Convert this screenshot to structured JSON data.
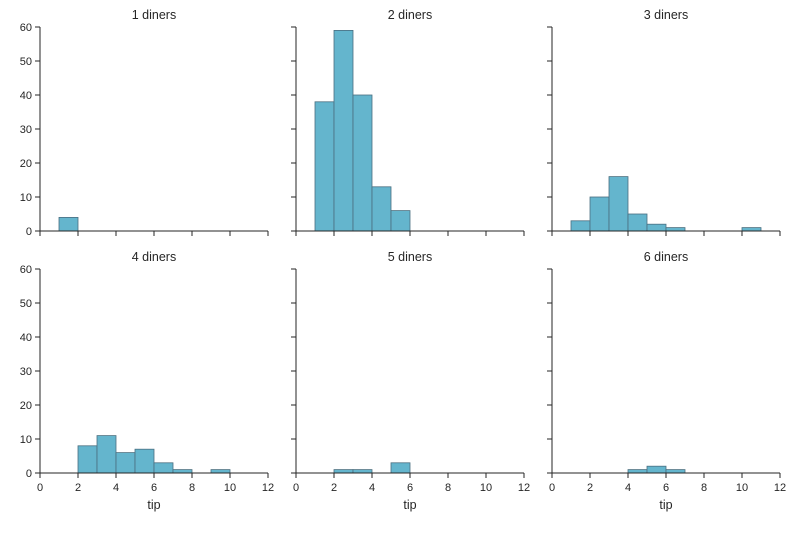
{
  "chart_data": {
    "type": "bar",
    "bar_color": "#64b5cd",
    "bar_edge_color": "#4a6f80",
    "xlim": [
      0,
      12
    ],
    "ylim": [
      0,
      60
    ],
    "xticks": [
      0,
      2,
      4,
      6,
      8,
      10,
      12
    ],
    "yticks": [
      0,
      10,
      20,
      30,
      40,
      50,
      60
    ],
    "xlabel": "tip",
    "grid": false,
    "panels": [
      {
        "title": "1 diners",
        "bins": [
          {
            "x0": 1,
            "x1": 2,
            "count": 4
          }
        ]
      },
      {
        "title": "2 diners",
        "bins": [
          {
            "x0": 1,
            "x1": 2,
            "count": 38
          },
          {
            "x0": 2,
            "x1": 3,
            "count": 59
          },
          {
            "x0": 3,
            "x1": 4,
            "count": 40
          },
          {
            "x0": 4,
            "x1": 5,
            "count": 13
          },
          {
            "x0": 5,
            "x1": 6,
            "count": 6
          }
        ]
      },
      {
        "title": "3 diners",
        "bins": [
          {
            "x0": 1,
            "x1": 2,
            "count": 3
          },
          {
            "x0": 2,
            "x1": 3,
            "count": 10
          },
          {
            "x0": 3,
            "x1": 4,
            "count": 16
          },
          {
            "x0": 4,
            "x1": 5,
            "count": 5
          },
          {
            "x0": 5,
            "x1": 6,
            "count": 2
          },
          {
            "x0": 6,
            "x1": 7,
            "count": 1
          },
          {
            "x0": 10,
            "x1": 11,
            "count": 1
          }
        ]
      },
      {
        "title": "4 diners",
        "bins": [
          {
            "x0": 2,
            "x1": 3,
            "count": 8
          },
          {
            "x0": 3,
            "x1": 4,
            "count": 11
          },
          {
            "x0": 4,
            "x1": 5,
            "count": 6
          },
          {
            "x0": 5,
            "x1": 6,
            "count": 7
          },
          {
            "x0": 6,
            "x1": 7,
            "count": 3
          },
          {
            "x0": 7,
            "x1": 8,
            "count": 1
          },
          {
            "x0": 9,
            "x1": 10,
            "count": 1
          }
        ]
      },
      {
        "title": "5 diners",
        "bins": [
          {
            "x0": 2,
            "x1": 3,
            "count": 1
          },
          {
            "x0": 3,
            "x1": 4,
            "count": 1
          },
          {
            "x0": 5,
            "x1": 6,
            "count": 3
          }
        ]
      },
      {
        "title": "6 diners",
        "bins": [
          {
            "x0": 4,
            "x1": 5,
            "count": 1
          },
          {
            "x0": 5,
            "x1": 6,
            "count": 2
          },
          {
            "x0": 6,
            "x1": 7,
            "count": 1
          }
        ]
      }
    ]
  }
}
